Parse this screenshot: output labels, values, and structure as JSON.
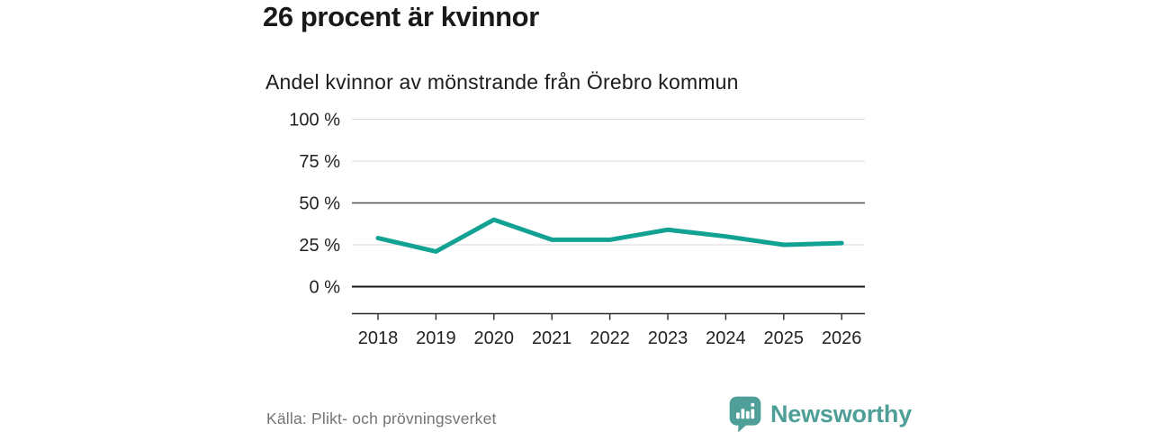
{
  "header": {
    "title": "26 procent är kvinnor",
    "subtitle": "Andel kvinnor av mönstrande från Örebro kommun"
  },
  "footer": {
    "source": "Källa: Plikt- och prövningsverket",
    "brand_name": "Newsworthy"
  },
  "colors": {
    "accent_line": "#12a294",
    "brand_teal": "#4d9f98",
    "grid_light": "#d8d8d8",
    "grid_mid": "#4f4f4f",
    "grid_zero": "#161616",
    "source_gray": "#747474"
  },
  "chart_data": {
    "type": "line",
    "title": "26 procent är kvinnor",
    "subtitle": "Andel kvinnor av mönstrande från Örebro kommun",
    "x": [
      "2018",
      "2019",
      "2020",
      "2021",
      "2022",
      "2023",
      "2024",
      "2025",
      "2026"
    ],
    "series": [
      {
        "name": "Andel kvinnor av mönstrande",
        "values": [
          29,
          21,
          40,
          28,
          28,
          34,
          30,
          25,
          26
        ]
      }
    ],
    "unit": "%",
    "ylim": [
      0,
      100
    ],
    "yticks": [
      0,
      25,
      50,
      75,
      100
    ],
    "ytick_labels": [
      "0 %",
      "25 %",
      "50 %",
      "75 %",
      "100 %"
    ],
    "emphasized_gridline": 50,
    "zero_gridline": 0,
    "grid": "horizontal",
    "legend": "none",
    "line_color": "#12a294"
  }
}
